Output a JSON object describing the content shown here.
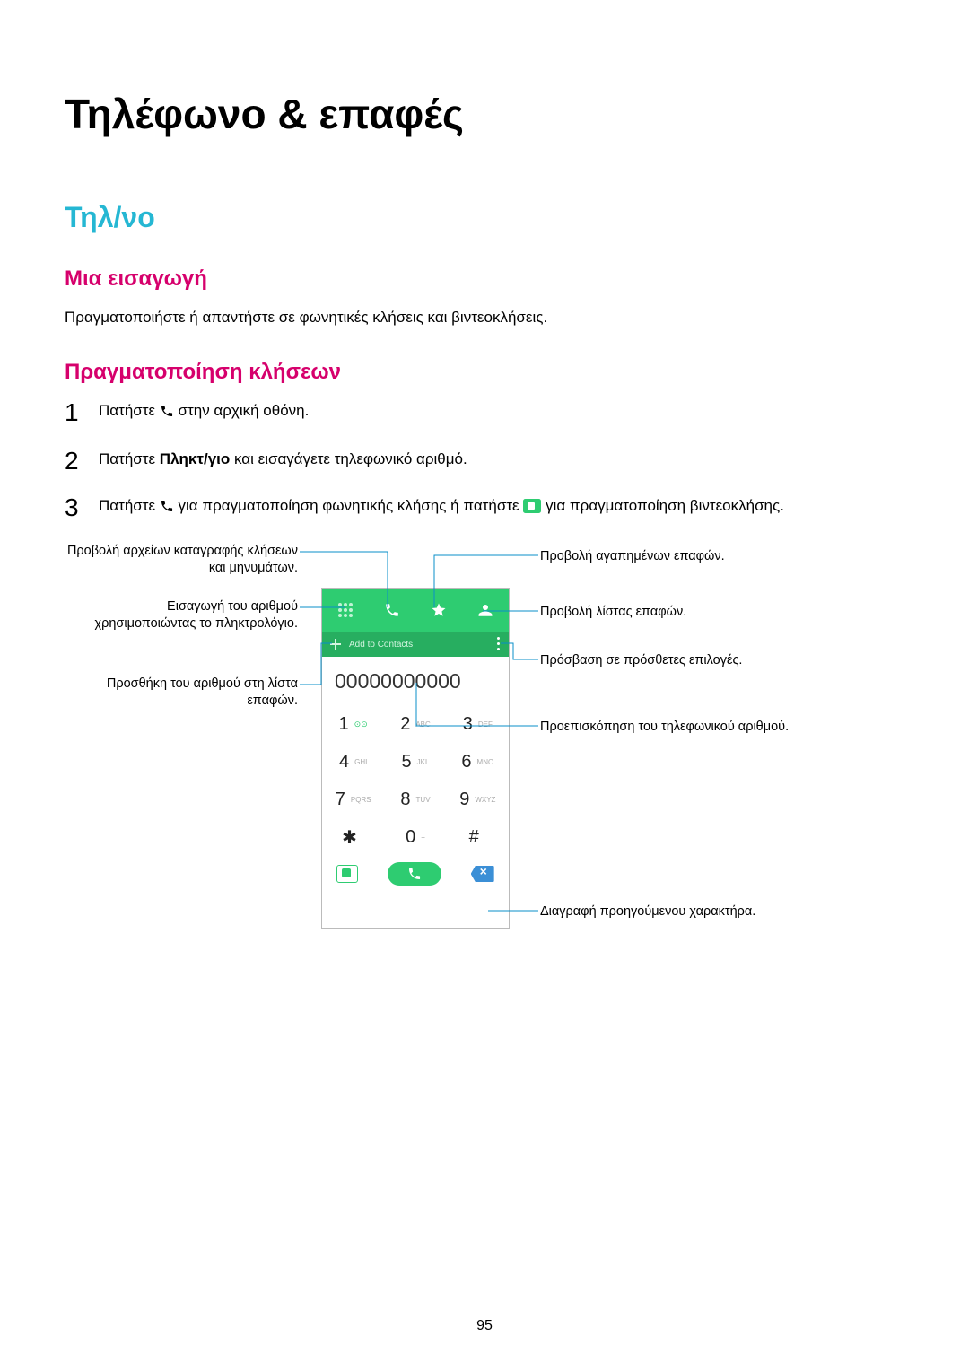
{
  "page_title": "Τηλέφωνο & επαφές",
  "section": "Τηλ/νο",
  "sub1": {
    "heading": "Μια εισαγωγή",
    "body": "Πραγματοποιήστε ή απαντήστε σε φωνητικές κλήσεις και βιντεοκλήσεις."
  },
  "sub2": {
    "heading": "Πραγματοποίηση κλήσεων",
    "step1_a": "Πατήστε ",
    "step1_b": " στην αρχική οθόνη.",
    "step2_a": "Πατήστε ",
    "step2_bold": "Πληκτ/γιο",
    "step2_b": " και εισαγάγετε τηλεφωνικό αριθμό.",
    "step3_a": "Πατήστε ",
    "step3_b": " για πραγματοποίηση φωνητικής κλήσης ή πατήστε ",
    "step3_c": " για πραγματοποίηση βιντεοκλήσης."
  },
  "dialer": {
    "number": "00000000000",
    "keys": [
      {
        "main": "1",
        "sub": "",
        "vm": true
      },
      {
        "main": "2",
        "sub": "ABC"
      },
      {
        "main": "3",
        "sub": "DEF"
      },
      {
        "main": "4",
        "sub": "GHI"
      },
      {
        "main": "5",
        "sub": "JKL"
      },
      {
        "main": "6",
        "sub": "MNO"
      },
      {
        "main": "7",
        "sub": "PQRS"
      },
      {
        "main": "8",
        "sub": "TUV"
      },
      {
        "main": "9",
        "sub": "WXYZ"
      },
      {
        "main": "✱",
        "sub": ""
      },
      {
        "main": "0",
        "sub": "+"
      },
      {
        "main": "#",
        "sub": ""
      }
    ],
    "addrow_label": "Add to Contacts",
    "colors": {
      "green": "#2ecc71",
      "darkgreen": "#27ae60",
      "blue": "#3b8fd6",
      "leader": "#0a8fc9"
    }
  },
  "callouts": {
    "left1": "Προβολή αρχείων καταγραφής κλήσεων και μηνυμάτων.",
    "left2": "Εισαγωγή του αριθμού χρησιμοποιώντας το πληκτρολόγιο.",
    "left3": "Προσθήκη του αριθμού στη λίστα επαφών.",
    "right1": "Προβολή αγαπημένων επαφών.",
    "right2": "Προβολή λίστας επαφών.",
    "right3": "Πρόσβαση σε πρόσθετες επιλογές.",
    "right4": "Προεπισκόπηση του τηλεφωνικού αριθμού.",
    "right5": "Διαγραφή προηγούμενου χαρακτήρα."
  },
  "page_number": "95"
}
